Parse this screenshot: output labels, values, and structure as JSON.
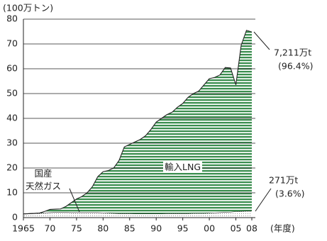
{
  "chart_data": {
    "type": "stacked_area",
    "y_axis_label": "(100万トン)",
    "x_axis_label": "(年度)",
    "x": [
      1965,
      1966,
      1967,
      1968,
      1969,
      1970,
      1971,
      1972,
      1973,
      1974,
      1975,
      1976,
      1977,
      1978,
      1979,
      1980,
      1981,
      1982,
      1983,
      1984,
      1985,
      1986,
      1987,
      1988,
      1989,
      1990,
      1991,
      1992,
      1993,
      1994,
      1995,
      1996,
      1997,
      1998,
      1999,
      2000,
      2001,
      2002,
      2003,
      2004,
      2005,
      2006,
      2007,
      2008
    ],
    "series": [
      {
        "name": "国産\n天然ガス",
        "color": "#777777",
        "pattern": "dots",
        "values": [
          1.5,
          1.6,
          1.7,
          1.8,
          2.0,
          2.1,
          2.2,
          2.2,
          2.2,
          2.1,
          2.1,
          2.1,
          2.1,
          2.1,
          2.1,
          2.0,
          1.9,
          1.8,
          1.7,
          1.7,
          1.7,
          1.6,
          1.6,
          1.6,
          1.6,
          1.6,
          1.6,
          1.7,
          1.7,
          1.7,
          1.7,
          1.7,
          1.8,
          1.8,
          1.8,
          1.9,
          2.0,
          2.1,
          2.2,
          2.3,
          2.5,
          2.6,
          2.7,
          2.71
        ]
      },
      {
        "name": "輸入LNG",
        "color": "#3b8e4f",
        "pattern": "stripes",
        "values": [
          0,
          0,
          0,
          0,
          0.5,
          1.2,
          1.2,
          1.3,
          2.3,
          3.9,
          5.4,
          6.4,
          7.9,
          10.4,
          14.4,
          16.5,
          17.1,
          18.2,
          21.3,
          26.8,
          27.8,
          28.9,
          29.9,
          31.4,
          33.9,
          36.9,
          38.4,
          39.8,
          40.8,
          42.8,
          44.3,
          46.8,
          48.2,
          49.2,
          51.7,
          54.1,
          54.5,
          55.4,
          58.3,
          58.0,
          51.0,
          66.9,
          72.8,
          72.11
        ]
      }
    ],
    "annotations": [
      "7,211万t",
      "(96.4%)",
      "271万t",
      "(3.6%)"
    ],
    "xlim": [
      1965,
      2008
    ],
    "xticks": [
      1965,
      {
        "value": 1970,
        "label": "70"
      },
      {
        "value": 1975,
        "label": "75"
      },
      {
        "value": 1980,
        "label": "80"
      },
      {
        "value": 1985,
        "label": "85"
      },
      {
        "value": 1990,
        "label": "90"
      },
      {
        "value": 1995,
        "label": "95"
      },
      {
        "value": 2000,
        "label": "00"
      },
      {
        "value": 2005,
        "label": "05"
      },
      {
        "value": 2008,
        "label": "08"
      }
    ],
    "ylim": [
      0,
      80
    ],
    "yticks": [
      0,
      10,
      20,
      30,
      40,
      50,
      60,
      70,
      80
    ],
    "grid": true
  }
}
